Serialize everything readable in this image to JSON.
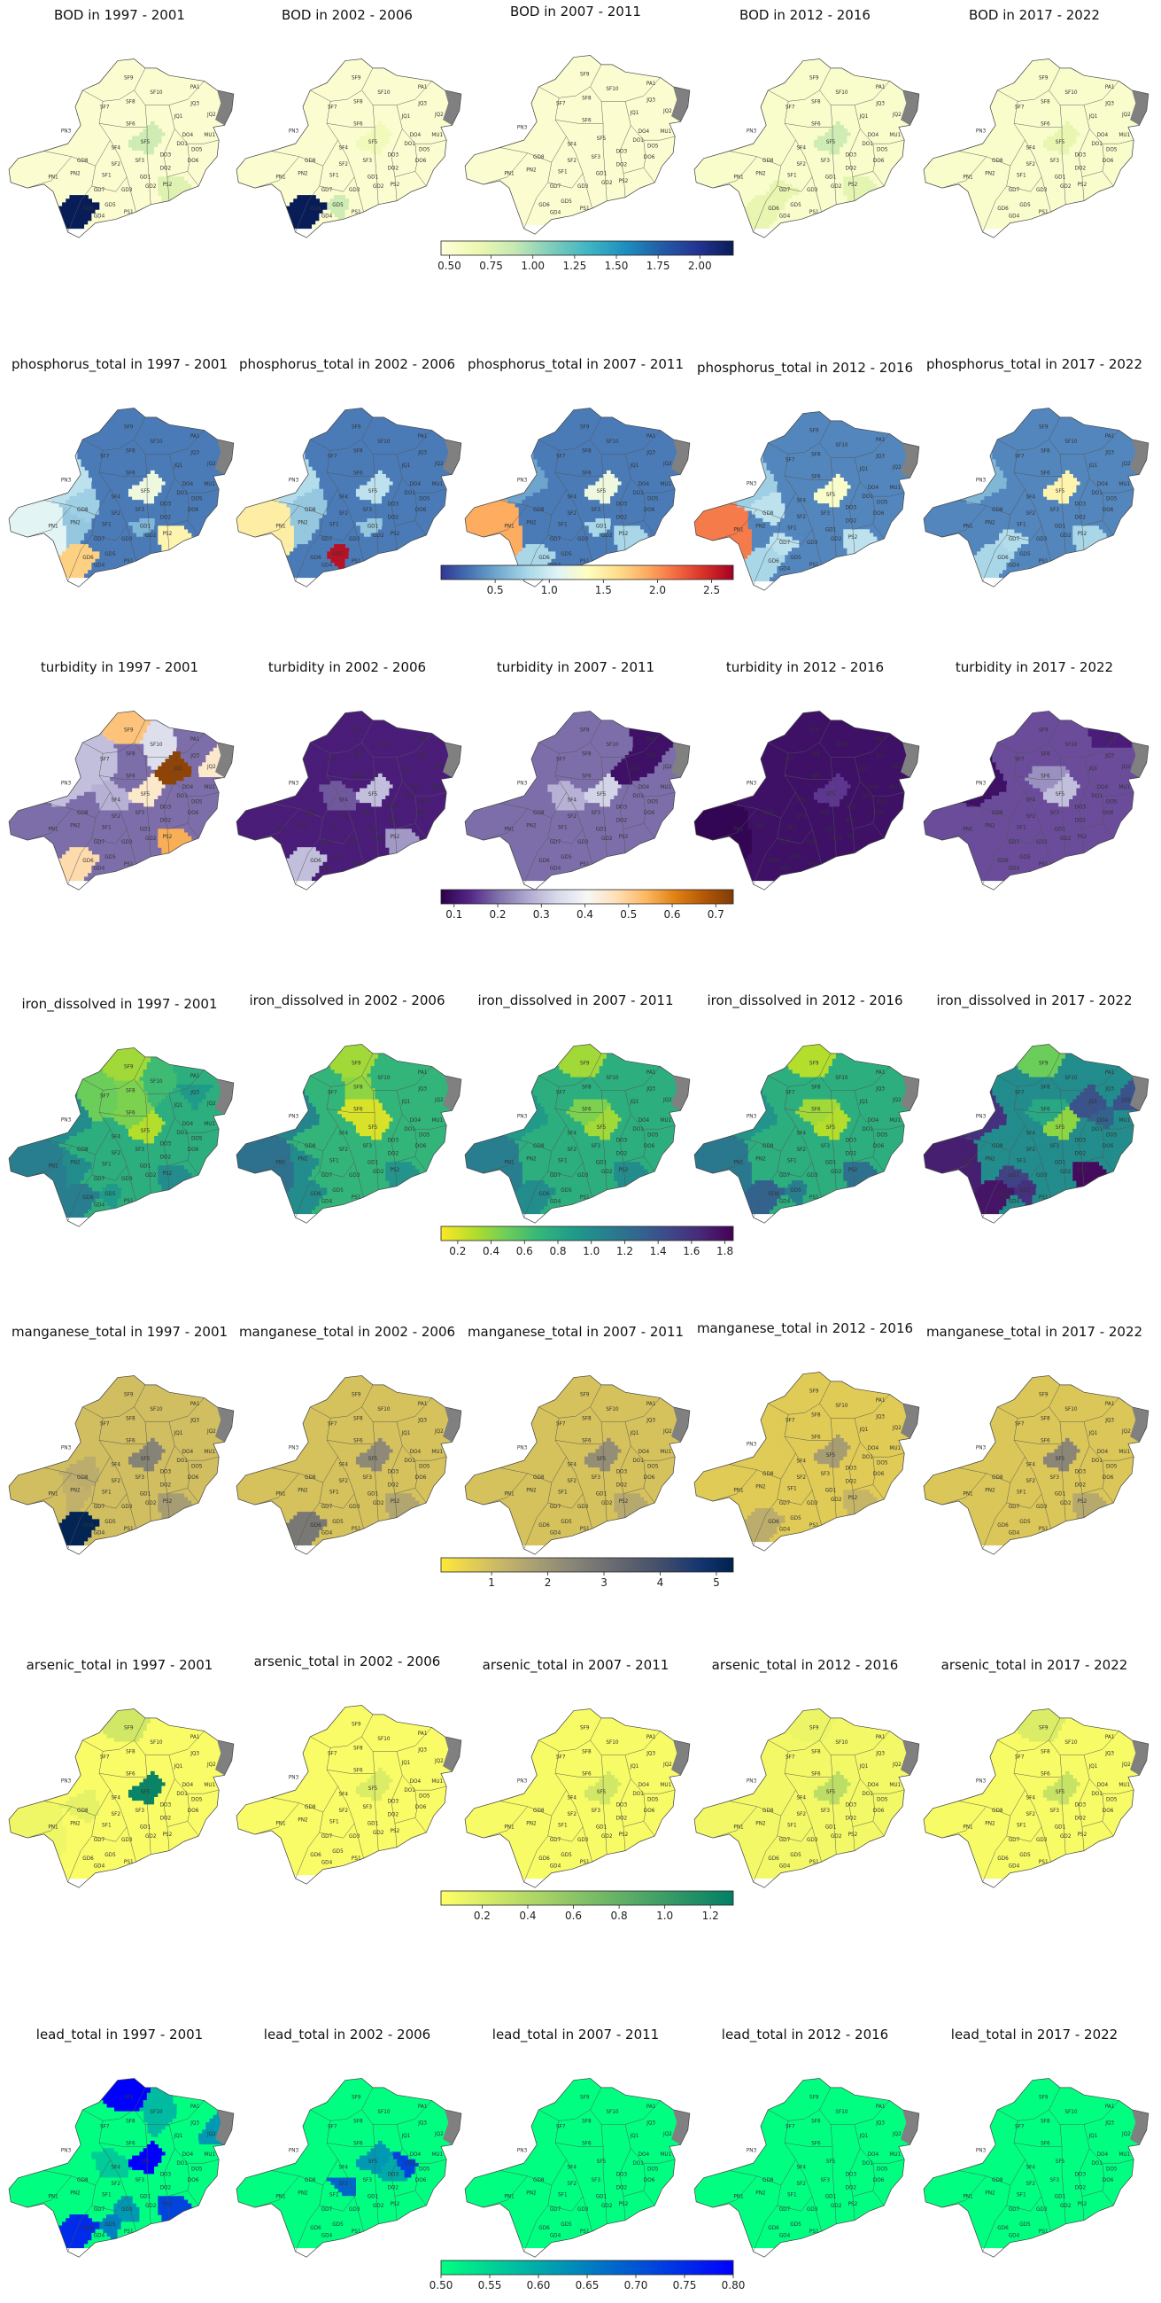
{
  "chart_data": {
    "type": "choropleth-grid",
    "region_labels": [
      "SF9",
      "PA1",
      "SF10",
      "JQ3",
      "JQ2",
      "SF7",
      "SF8",
      "JQ1",
      "MU1",
      "SF6",
      "DO4",
      "PN3",
      "SF4",
      "SF5",
      "DO1",
      "DO5",
      "GD8",
      "SF2",
      "SF3",
      "DO3",
      "DO6",
      "PN2",
      "PN1",
      "SF1",
      "DO2",
      "GD1",
      "GD7",
      "GD3",
      "GD2",
      "PS2",
      "GD5",
      "GD6",
      "GD4",
      "PS1"
    ],
    "periods": [
      "1997 - 2001",
      "2002 - 2006",
      "2007 - 2011",
      "2012 - 2016",
      "2017 - 2022"
    ],
    "rows": [
      {
        "parameter": "BOD",
        "titles": [
          "BOD in 1997 - 2001",
          "BOD in 2002 - 2006",
          "BOD in 2007 - 2011",
          "BOD in 2012 - 2016",
          "BOD in 2017 - 2022"
        ],
        "colorbar": {
          "colormap": "YlGnBu",
          "colors": [
            "#ffffd9",
            "#edf8b1",
            "#c7e9b4",
            "#7fcdbb",
            "#41b6c4",
            "#1d91c0",
            "#225ea8",
            "#253494",
            "#081d58"
          ],
          "range": [
            0.45,
            2.2
          ],
          "ticks": [
            0.5,
            0.75,
            1.0,
            1.25,
            1.5,
            1.75,
            2.0
          ],
          "tick_labels": [
            "0.50",
            "0.75",
            "1.00",
            "1.25",
            "1.50",
            "1.75",
            "2.00"
          ]
        }
      },
      {
        "parameter": "phosphorus_total",
        "titles": [
          "phosphorus_total in 1997 - 2001",
          "phosphorus_total in 2002 - 2006",
          "phosphorus_total in 2007 - 2011",
          "phosphorus_total in 2012 - 2016",
          "phosphorus_total in 2017 - 2022"
        ],
        "colorbar": {
          "colormap": "RdYlBu_r",
          "colors": [
            "#313695",
            "#4575b4",
            "#74add1",
            "#abd9e9",
            "#e0f3f8",
            "#ffffbf",
            "#fee090",
            "#fdae61",
            "#f46d43",
            "#d73027",
            "#a50026"
          ],
          "range": [
            0.0,
            2.7
          ],
          "ticks": [
            0.5,
            1.0,
            1.5,
            2.0,
            2.5
          ],
          "tick_labels": [
            "0.5",
            "1.0",
            "1.5",
            "2.0",
            "2.5"
          ]
        }
      },
      {
        "parameter": "turbidity",
        "titles": [
          "turbidity in 1997 - 2001",
          "turbidity in 2002 - 2006",
          "turbidity in 2007 - 2011",
          "turbidity in 2012 - 2016",
          "turbidity in 2017 - 2022"
        ],
        "colorbar": {
          "colormap": "PuOr_r",
          "colors": [
            "#2d004b",
            "#542788",
            "#8073ac",
            "#b2abd2",
            "#d8daeb",
            "#f7f7f7",
            "#fee0b6",
            "#fdb863",
            "#e08214",
            "#b35806",
            "#7f3b08"
          ],
          "range": [
            0.07,
            0.74
          ],
          "ticks": [
            0.1,
            0.2,
            0.3,
            0.4,
            0.5,
            0.6,
            0.7
          ],
          "tick_labels": [
            "0.1",
            "0.2",
            "0.3",
            "0.4",
            "0.5",
            "0.6",
            "0.7"
          ]
        }
      },
      {
        "parameter": "iron_dissolved",
        "titles": [
          "iron_dissolved in 1997 - 2001",
          "iron_dissolved in 2002 - 2006",
          "iron_dissolved in 2007 - 2011",
          "iron_dissolved in 2012 - 2016",
          "iron_dissolved in 2017 - 2022"
        ],
        "colorbar": {
          "colormap": "viridis_r",
          "colors": [
            "#fde725",
            "#b5de2b",
            "#6ece58",
            "#35b779",
            "#1f9e89",
            "#26828e",
            "#31688e",
            "#3e4989",
            "#482878",
            "#440154"
          ],
          "range": [
            0.1,
            1.85
          ],
          "ticks": [
            0.2,
            0.4,
            0.6,
            0.8,
            1.0,
            1.2,
            1.4,
            1.6,
            1.8
          ],
          "tick_labels": [
            "0.2",
            "0.4",
            "0.6",
            "0.8",
            "1.0",
            "1.2",
            "1.4",
            "1.6",
            "1.8"
          ]
        }
      },
      {
        "parameter": "manganese_total",
        "titles": [
          "manganese_total in 1997 - 2001",
          "manganese_total in 2002 - 2006",
          "manganese_total in 2007 - 2011",
          "manganese_total in 2012 - 2016",
          "manganese_total in 2017 - 2022"
        ],
        "colorbar": {
          "colormap": "cividis_r",
          "colors": [
            "#fee838",
            "#e1cc55",
            "#c3b369",
            "#a59c74",
            "#8a8678",
            "#707173",
            "#575d6d",
            "#3b496c",
            "#123570",
            "#00224e"
          ],
          "range": [
            0.1,
            5.3
          ],
          "ticks": [
            1,
            2,
            3,
            4,
            5
          ],
          "tick_labels": [
            "1",
            "2",
            "3",
            "4",
            "5"
          ]
        }
      },
      {
        "parameter": "arsenic_total",
        "titles": [
          "arsenic_total in 1997 - 2001",
          "arsenic_total in 2002 - 2006",
          "arsenic_total in 2007 - 2011",
          "arsenic_total in 2012 - 2016",
          "arsenic_total in 2017 - 2022"
        ],
        "colorbar": {
          "colormap": "summer_r",
          "colors": [
            "#ffff66",
            "#d4ea66",
            "#aad466",
            "#7fbf66",
            "#55aa66",
            "#2a9466",
            "#007f66"
          ],
          "range": [
            0.02,
            1.3
          ],
          "ticks": [
            0.2,
            0.4,
            0.6,
            0.8,
            1.0,
            1.2
          ],
          "tick_labels": [
            "0.2",
            "0.4",
            "0.6",
            "0.8",
            "1.0",
            "1.2"
          ]
        }
      },
      {
        "parameter": "lead_total",
        "titles": [
          "lead_total in 1997 - 2001",
          "lead_total in 2002 - 2006",
          "lead_total in 2007 - 2011",
          "lead_total in 2012 - 2016",
          "lead_total in 2017 - 2022"
        ],
        "colorbar": {
          "colormap": "winter_r",
          "colors": [
            "#00ff80",
            "#0000ff"
          ],
          "range": [
            0.5,
            0.8
          ],
          "ticks": [
            0.5,
            0.55,
            0.6,
            0.65,
            0.7,
            0.75,
            0.8
          ],
          "tick_labels": [
            "0.50",
            "0.55",
            "0.60",
            "0.65",
            "0.70",
            "0.75",
            "0.80"
          ]
        }
      }
    ]
  }
}
